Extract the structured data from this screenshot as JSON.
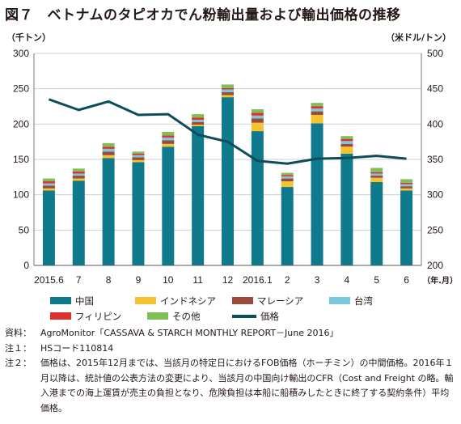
{
  "title": "図７　ベトナムのタピオカでん粉輸出量および輸出価格の推移",
  "unit_left": "（千トン）",
  "unit_right": "（米ドル/トン）",
  "chart_data": {
    "type": "bar",
    "stacked": true,
    "categories": [
      "2015.6",
      "7",
      "8",
      "9",
      "10",
      "11",
      "12",
      "2016.1",
      "2",
      "3",
      "4",
      "5",
      "6"
    ],
    "x_unit_label": "（年.月）",
    "y_left": {
      "min": 0,
      "max": 300,
      "ticks": [
        0,
        50,
        100,
        150,
        200,
        250,
        300
      ]
    },
    "y_right": {
      "min": 200,
      "max": 500,
      "ticks": [
        200,
        250,
        300,
        350,
        400,
        450,
        500
      ]
    },
    "series": [
      {
        "name": "中国",
        "color": "#0f7a8c",
        "values": [
          106,
          120,
          152,
          146,
          168,
          197,
          238,
          190,
          111,
          201,
          158,
          118,
          106
        ]
      },
      {
        "name": "インドネシア",
        "color": "#f5c232",
        "values": [
          3,
          3,
          4,
          3,
          4,
          2,
          3,
          12,
          8,
          12,
          10,
          6,
          3
        ]
      },
      {
        "name": "マレーシア",
        "color": "#9a4a36",
        "values": [
          4,
          4,
          5,
          4,
          5,
          4,
          4,
          6,
          4,
          5,
          4,
          3,
          3
        ]
      },
      {
        "name": "台湾",
        "color": "#7ac7de",
        "values": [
          3,
          3,
          4,
          3,
          4,
          3,
          4,
          4,
          3,
          4,
          4,
          3,
          3
        ]
      },
      {
        "name": "フィリピン",
        "color": "#e0302e",
        "values": [
          3,
          3,
          3,
          2,
          3,
          3,
          2,
          4,
          2,
          3,
          3,
          2,
          2
        ]
      },
      {
        "name": "その他",
        "color": "#7fbf58",
        "values": [
          4,
          4,
          5,
          3,
          5,
          5,
          5,
          5,
          3,
          5,
          4,
          6,
          5
        ]
      }
    ],
    "line": {
      "name": "価格",
      "color": "#0d4d59",
      "axis": "right",
      "values": [
        435,
        420,
        432,
        413,
        414,
        385,
        375,
        348,
        344,
        351,
        352,
        355,
        351
      ]
    }
  },
  "legend_rows": [
    [
      "中国",
      "インドネシア",
      "マレーシア",
      "台湾"
    ],
    [
      "フィリピン",
      "その他",
      "価格"
    ]
  ],
  "notes": [
    {
      "label": "資料：",
      "text": "AgroMonitor「CASSAVA & STARCH MONTHLY REPORT－June 2016」"
    },
    {
      "label": "注１：",
      "text": "HSコード110814"
    },
    {
      "label": "注２：",
      "text": "価格は、2015年12月までは、当該月の特定日におけるFOB価格（ホーチミン）の中間価格。2016年１月以降は、統計値の公表方法の変更により、当該月の中国向け輸出のCFR（Cost and Freight の略。輸入港までの海上運賃が売主の負担となり、危険負担は本船に船積みしたときに終了する契約条件）平均価格。"
    }
  ]
}
